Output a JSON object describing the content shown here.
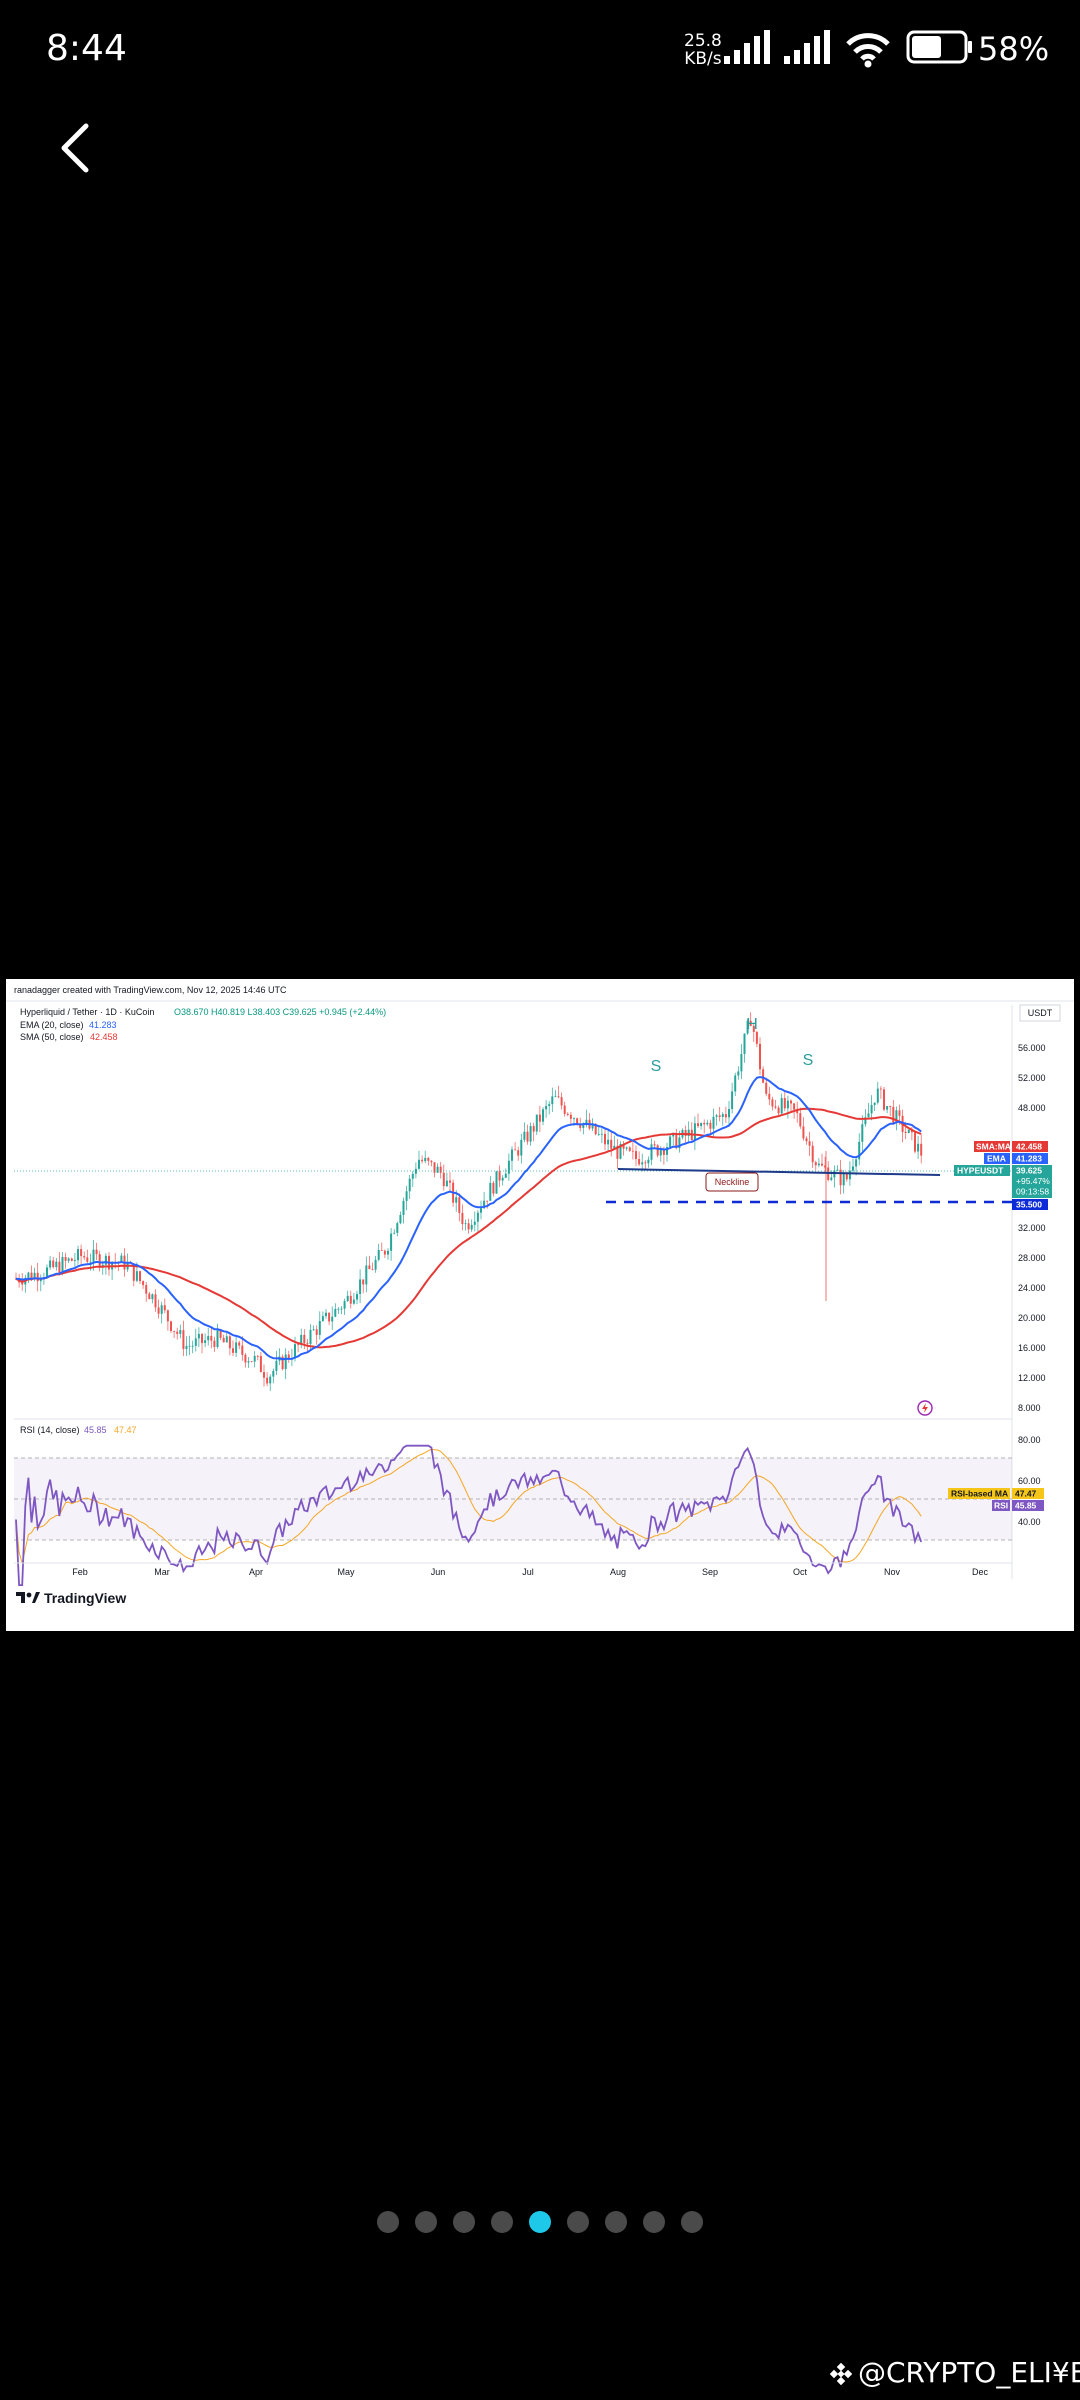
{
  "status_bar": {
    "time": "8:44",
    "net_speed_value": "25.8",
    "net_speed_unit": "KB/s",
    "battery_percent": "58%",
    "battery_level": 0.58
  },
  "chart": {
    "credit": "ranadagger created with TradingView.com, Nov 12, 2025 14:46 UTC",
    "symbol_line": "Hyperliquid / Tether · 1D · KuCoin",
    "ohlc": "O38.670  H40.819  L38.403  C39.625  +0.945 (+2.44%)",
    "ema_label": "EMA (20, close)",
    "ema_value": "41.283",
    "sma_label": "SMA (50, close)",
    "sma_value": "42.458",
    "currency": "USDT",
    "pattern_h": "H",
    "pattern_s_left": "S",
    "pattern_s_right": "S",
    "neckline_label": "Neckline",
    "rsi_label": "RSI (14, close)",
    "rsi_value": "45.85",
    "rsi_ma_value": "47.47",
    "price_ticks": [
      "56.000",
      "52.000",
      "48.000",
      "32.000",
      "28.000",
      "24.000",
      "20.000",
      "16.000",
      "12.000",
      "8.000"
    ],
    "rsi_ticks": [
      "80.00",
      "60.00",
      "40.00"
    ],
    "months": [
      "Feb",
      "Mar",
      "Apr",
      "May",
      "Jun",
      "Jul",
      "Aug",
      "Sep",
      "Oct",
      "Nov",
      "Dec"
    ],
    "tags": {
      "sma_name": "SMA:MA",
      "sma_value": "42.458",
      "ema_name": "EMA",
      "ema_value": "41.283",
      "symbol": "HYPEUSDT",
      "price": "39.625",
      "change": "+95.47%",
      "countdown": "09:13:58",
      "support": "35.500",
      "rsi_ma_name": "RSI-based MA",
      "rsi_ma_value": "47.47",
      "rsi_name": "RSI",
      "rsi_value": "45.85"
    },
    "brand": "TradingView",
    "colors": {
      "ema": "#2962ff",
      "sma": "#e53935",
      "rsi": "#7e57c2",
      "up": "#26a69a",
      "down": "#ef5350",
      "support": "#0d2bd6"
    }
  },
  "chart_data": {
    "type": "candlestick",
    "title": "Hyperliquid / Tether · 1D · KuCoin",
    "x_ticks": [
      "Feb",
      "Mar",
      "Apr",
      "May",
      "Jun",
      "Jul",
      "Aug",
      "Sep",
      "Oct",
      "Nov",
      "Dec"
    ],
    "y_ticks": [
      56,
      52,
      48,
      32,
      28,
      24,
      20,
      16,
      12,
      8
    ],
    "ylim": [
      6,
      60
    ],
    "series": [
      {
        "name": "EMA (20, close)",
        "last": 41.283
      },
      {
        "name": "SMA (50, close)",
        "last": 42.458
      }
    ],
    "close_path": {
      "x": [
        "Jan 10",
        "Jan 20",
        "Feb 1",
        "Feb 15",
        "Mar 1",
        "Mar 10",
        "Mar 20",
        "Apr 1",
        "Apr 7",
        "Apr 20",
        "May 1",
        "May 15",
        "May 25",
        "Jun 5",
        "Jun 15",
        "Jul 1",
        "Jul 15",
        "Aug 1",
        "Aug 10",
        "Aug 25",
        "Sep 10",
        "Sep 18",
        "Sep 25",
        "Oct 5",
        "Oct 10",
        "Oct 20",
        "Nov 1",
        "Nov 12"
      ],
      "y": [
        23,
        24,
        26,
        25,
        20,
        14,
        15,
        12,
        10,
        15,
        20,
        27,
        39,
        37,
        30,
        38,
        47,
        40,
        39,
        42,
        45,
        58,
        47,
        45,
        38,
        36,
        48,
        39.625
      ]
    },
    "annotations": {
      "support": 35.5,
      "neckline_label": "Neckline",
      "pattern": [
        "S",
        "H",
        "S"
      ]
    },
    "rsi": {
      "label": "RSI (14, close)",
      "value": 45.85,
      "ma": 47.47,
      "levels": [
        80,
        60,
        40
      ]
    }
  },
  "carousel": {
    "count": 9,
    "active_index": 4
  },
  "watermark": "@CRYPTO_ELI¥ES"
}
